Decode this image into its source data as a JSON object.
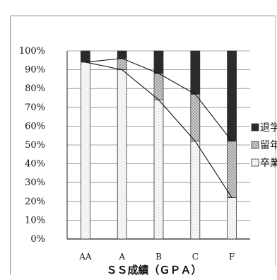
{
  "chart_data": {
    "type": "bar",
    "stacked": true,
    "categories": [
      "AA",
      "A",
      "B",
      "C",
      "F"
    ],
    "series": [
      {
        "name": "卒業",
        "values": [
          94,
          90,
          74,
          52,
          22
        ],
        "pattern": "dots"
      },
      {
        "name": "留年",
        "values": [
          0,
          6,
          14,
          25,
          30
        ],
        "pattern": "crosshatch"
      },
      {
        "name": "退学",
        "values": [
          6,
          4,
          12,
          23,
          48
        ],
        "pattern": "solid"
      }
    ],
    "connector_lines": true,
    "xlabel": "ＳＳ成績（ＧＰＡ）",
    "ylabel": "",
    "ylim": [
      0,
      100
    ],
    "yticks": [
      "0%",
      "10%",
      "20%",
      "30%",
      "40%",
      "50%",
      "60%",
      "70%",
      "80%",
      "90%",
      "100%"
    ],
    "grid": true,
    "legend_position": "right",
    "legend_order": [
      "退学",
      "留年",
      "卒業"
    ]
  }
}
